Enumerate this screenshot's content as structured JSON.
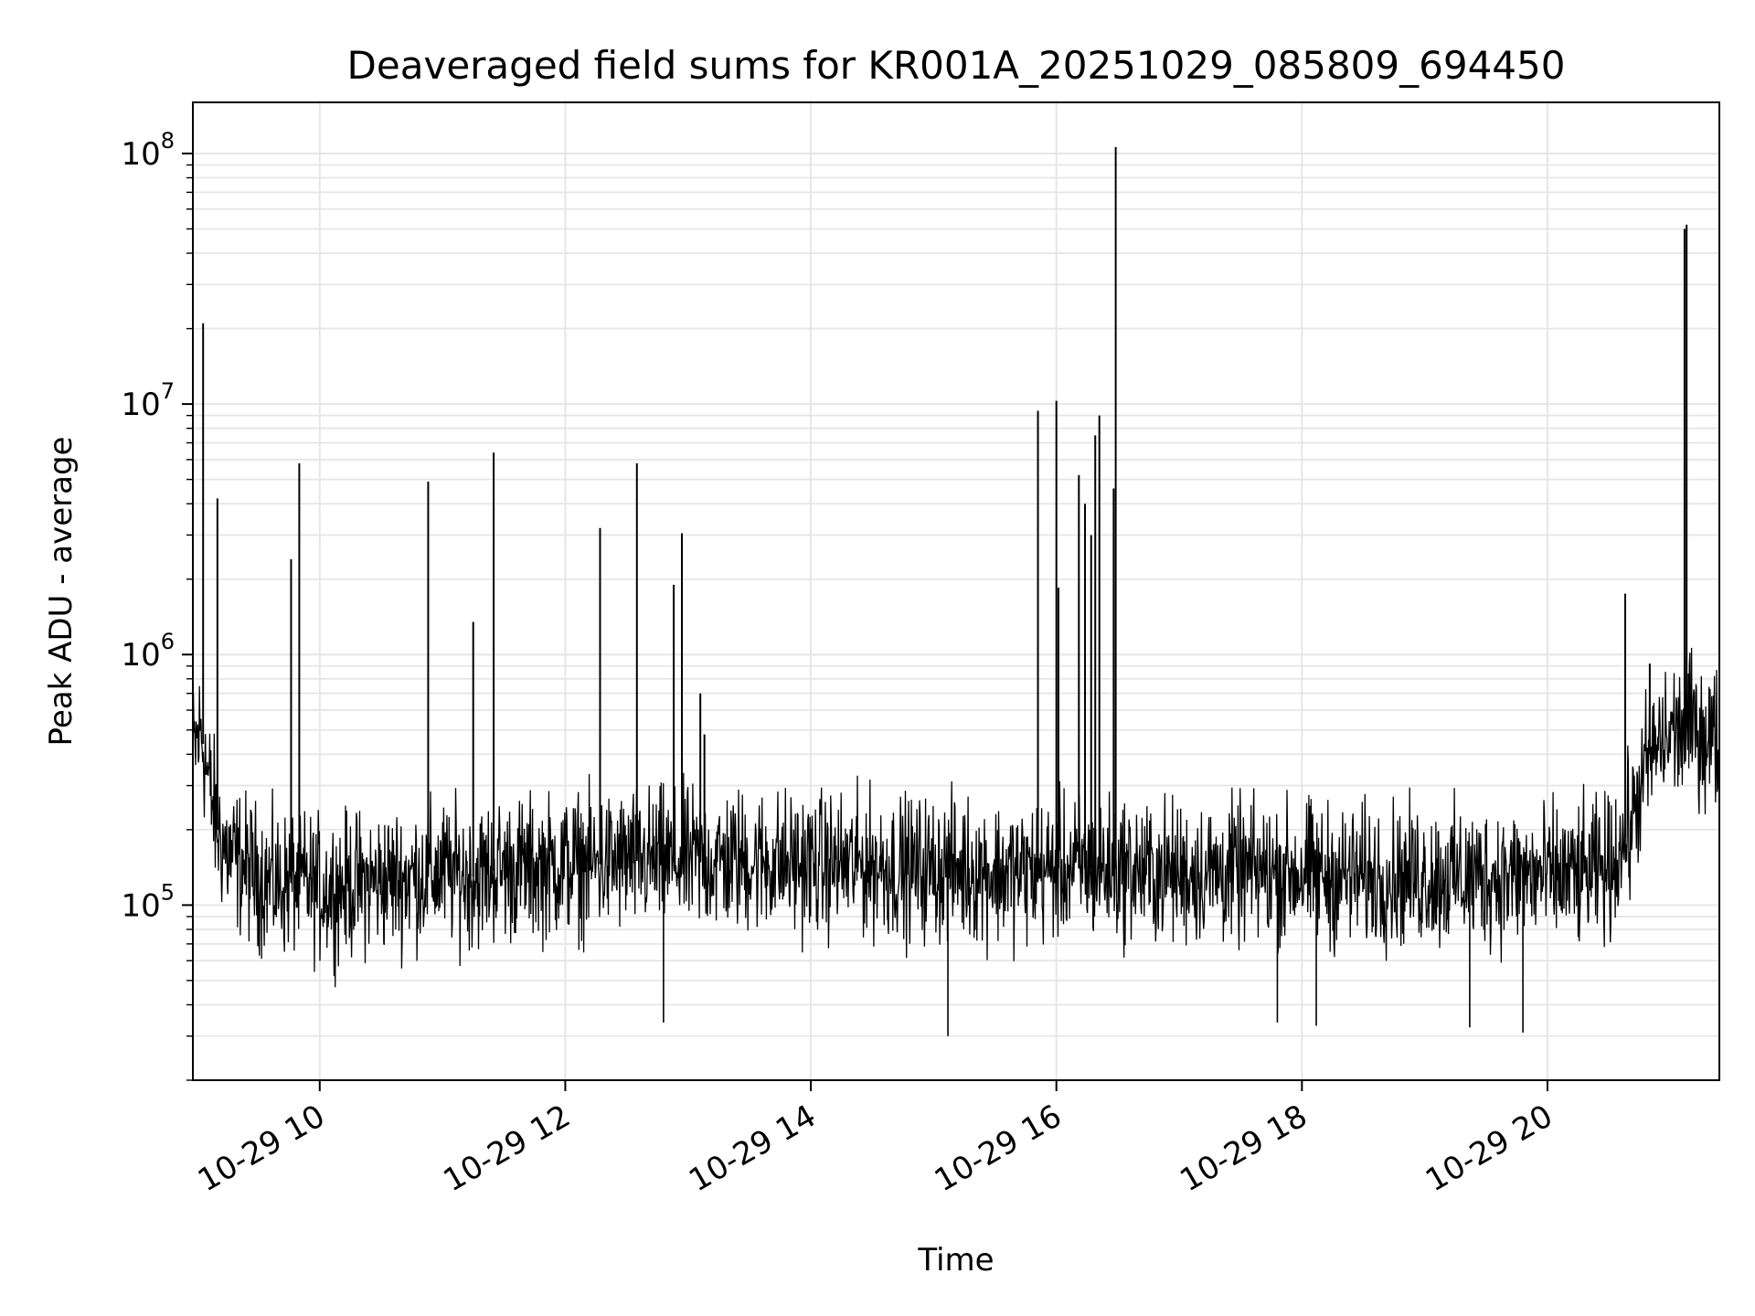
{
  "chart_data": {
    "type": "line",
    "title": "Deaveraged field sums for KR001A_20251029_085809_694450",
    "xlabel": "Time",
    "ylabel": "Peak ADU - average",
    "yscale": "log",
    "ylim": [
      20000,
      160000000
    ],
    "xlim": [
      "2025-10-29 08:58",
      "2025-10-29 21:24"
    ],
    "grid": true,
    "line_color": "#000000",
    "grid_color": "#e6e6e6",
    "x_ticks": [
      {
        "value": "2025-10-29 10:00",
        "label": "10-29 10"
      },
      {
        "value": "2025-10-29 12:00",
        "label": "10-29 12"
      },
      {
        "value": "2025-10-29 14:00",
        "label": "10-29 14"
      },
      {
        "value": "2025-10-29 16:00",
        "label": "10-29 16"
      },
      {
        "value": "2025-10-29 18:00",
        "label": "10-29 18"
      },
      {
        "value": "2025-10-29 20:00",
        "label": "10-29 20"
      }
    ],
    "y_ticks": [
      {
        "value": 100000,
        "base": "10",
        "exp": "5"
      },
      {
        "value": 1000000,
        "base": "10",
        "exp": "6"
      },
      {
        "value": 10000000,
        "base": "10",
        "exp": "7"
      },
      {
        "value": 100000000,
        "base": "10",
        "exp": "8"
      }
    ],
    "series": [
      {
        "x": [
          "2025-10-29 08:58",
          "2025-10-29 09:02",
          "2025-10-29 09:06",
          "2025-10-29 09:10",
          "2025-10-29 09:15",
          "2025-10-29 09:20",
          "2025-10-29 09:25",
          "2025-10-29 09:30",
          "2025-10-29 09:40",
          "2025-10-29 09:50",
          "2025-10-29 10:00",
          "2025-10-29 10:15",
          "2025-10-29 10:30",
          "2025-10-29 10:45",
          "2025-10-29 11:00",
          "2025-10-29 11:15",
          "2025-10-29 11:30",
          "2025-10-29 11:45",
          "2025-10-29 12:00",
          "2025-10-29 12:15",
          "2025-10-29 12:30",
          "2025-10-29 12:45",
          "2025-10-29 13:00",
          "2025-10-29 13:15",
          "2025-10-29 13:30",
          "2025-10-29 13:45",
          "2025-10-29 14:00",
          "2025-10-29 14:15",
          "2025-10-29 14:30",
          "2025-10-29 14:45",
          "2025-10-29 15:00",
          "2025-10-29 15:15",
          "2025-10-29 15:30",
          "2025-10-29 15:45",
          "2025-10-29 16:00",
          "2025-10-29 16:10",
          "2025-10-29 16:20",
          "2025-10-29 16:30",
          "2025-10-29 16:45",
          "2025-10-29 17:00",
          "2025-10-29 17:15",
          "2025-10-29 17:30",
          "2025-10-29 17:45",
          "2025-10-29 18:00",
          "2025-10-29 18:15",
          "2025-10-29 18:30",
          "2025-10-29 18:45",
          "2025-10-29 19:00",
          "2025-10-29 19:15",
          "2025-10-29 19:30",
          "2025-10-29 19:45",
          "2025-10-29 20:00",
          "2025-10-29 20:15",
          "2025-10-29 20:30",
          "2025-10-29 20:40",
          "2025-10-29 20:50",
          "2025-10-29 21:00",
          "2025-10-29 21:10",
          "2025-10-29 21:24"
        ],
        "y": [
          400000,
          500000,
          300000,
          200000,
          160000,
          150000,
          140000,
          130000,
          120000,
          125000,
          115000,
          120000,
          125000,
          130000,
          135000,
          130000,
          140000,
          140000,
          145000,
          145000,
          150000,
          150000,
          150000,
          150000,
          150000,
          148000,
          145000,
          145000,
          145000,
          140000,
          140000,
          140000,
          135000,
          135000,
          140000,
          140000,
          140000,
          140000,
          135000,
          135000,
          135000,
          135000,
          135000,
          135000,
          130000,
          130000,
          130000,
          130000,
          130000,
          130000,
          130000,
          130000,
          130000,
          140000,
          200000,
          400000,
          480000,
          520000,
          450000
        ]
      }
    ],
    "spikes": [
      {
        "x": "2025-10-29 09:03",
        "y": 21000000
      },
      {
        "x": "2025-10-29 09:10",
        "y": 4200000
      },
      {
        "x": "2025-10-29 09:46",
        "y": 2400000
      },
      {
        "x": "2025-10-29 09:50",
        "y": 5800000
      },
      {
        "x": "2025-10-29 10:53",
        "y": 4900000
      },
      {
        "x": "2025-10-29 11:15",
        "y": 1350000
      },
      {
        "x": "2025-10-29 11:25",
        "y": 6400000
      },
      {
        "x": "2025-10-29 12:17",
        "y": 3200000
      },
      {
        "x": "2025-10-29 12:35",
        "y": 5800000
      },
      {
        "x": "2025-10-29 12:53",
        "y": 1900000
      },
      {
        "x": "2025-10-29 12:57",
        "y": 3050000
      },
      {
        "x": "2025-10-29 13:06",
        "y": 700000
      },
      {
        "x": "2025-10-29 13:08",
        "y": 480000
      },
      {
        "x": "2025-10-29 15:51",
        "y": 9400000
      },
      {
        "x": "2025-10-29 16:00",
        "y": 10300000
      },
      {
        "x": "2025-10-29 16:01",
        "y": 1850000
      },
      {
        "x": "2025-10-29 16:11",
        "y": 5200000
      },
      {
        "x": "2025-10-29 16:14",
        "y": 4000000
      },
      {
        "x": "2025-10-29 16:17",
        "y": 3000000
      },
      {
        "x": "2025-10-29 16:19",
        "y": 7500000
      },
      {
        "x": "2025-10-29 16:21",
        "y": 9000000
      },
      {
        "x": "2025-10-29 16:28",
        "y": 4600000
      },
      {
        "x": "2025-10-29 16:29",
        "y": 106000000
      },
      {
        "x": "2025-10-29 20:38",
        "y": 1750000
      },
      {
        "x": "2025-10-29 20:50",
        "y": 920000
      },
      {
        "x": "2025-10-29 21:07",
        "y": 50000000
      },
      {
        "x": "2025-10-29 21:08",
        "y": 52000000
      }
    ],
    "dips": [
      {
        "x": "2025-10-29 12:48",
        "y": 34000
      },
      {
        "x": "2025-10-29 15:07",
        "y": 30000
      },
      {
        "x": "2025-10-29 17:48",
        "y": 34000
      },
      {
        "x": "2025-10-29 18:07",
        "y": 33000
      },
      {
        "x": "2025-10-29 19:22",
        "y": 32500
      },
      {
        "x": "2025-10-29 19:48",
        "y": 31000
      }
    ]
  }
}
